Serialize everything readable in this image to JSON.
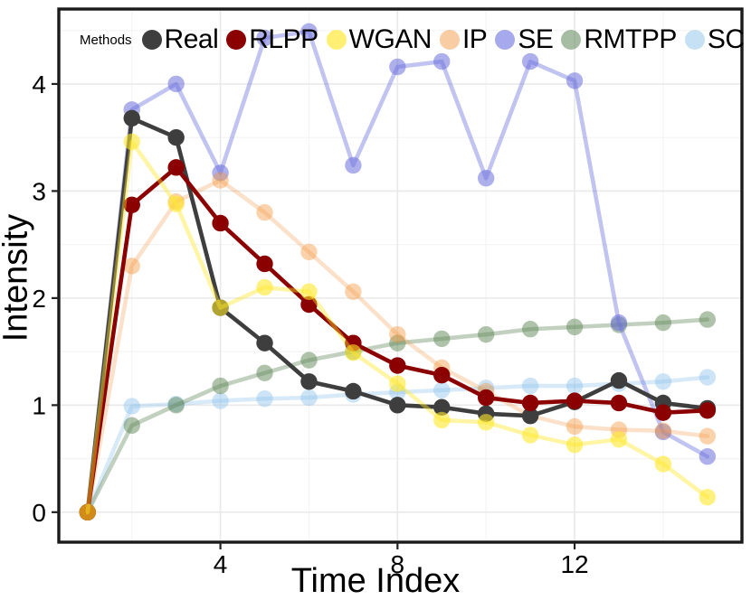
{
  "chart_data": {
    "type": "line",
    "title": "",
    "xlabel": "Time Index",
    "ylabel": "Intensity",
    "legend_title": "Methods",
    "legend_position": "top-inside",
    "grid": "major-and-minor",
    "x": [
      1,
      2,
      3,
      4,
      5,
      6,
      7,
      8,
      9,
      10,
      11,
      12,
      13,
      14,
      15
    ],
    "xlim": [
      0.35,
      15.78
    ],
    "ylim": [
      -0.28,
      4.7
    ],
    "x_major_ticks": [
      4,
      8,
      12
    ],
    "x_minor_gridlines": [
      2,
      6,
      10,
      14
    ],
    "y_major_ticks": [
      0,
      1,
      2,
      3,
      4
    ],
    "y_minor_gridlines": [
      0.5,
      1.5,
      2.5,
      3.5,
      4.5
    ],
    "series": [
      {
        "name": "Real",
        "color": "#3e3e3e",
        "line_opacity": 1,
        "marker_opacity": 1,
        "values": [
          0,
          3.68,
          3.5,
          1.91,
          1.58,
          1.22,
          1.13,
          1.0,
          0.98,
          0.92,
          0.9,
          1.03,
          1.23,
          1.02,
          0.97
        ]
      },
      {
        "name": "RLPP",
        "color": "#8b0000",
        "line_opacity": 1,
        "marker_opacity": 1,
        "values": [
          0,
          2.87,
          3.22,
          2.7,
          2.32,
          1.94,
          1.58,
          1.37,
          1.28,
          1.07,
          1.02,
          1.04,
          1.02,
          0.93,
          0.95
        ]
      },
      {
        "name": "WGAN",
        "color": "#ffe829",
        "line_opacity": 0.42,
        "marker_opacity": 0.6,
        "values": [
          0,
          3.46,
          2.88,
          1.91,
          2.1,
          2.06,
          1.49,
          1.2,
          0.86,
          0.84,
          0.72,
          0.63,
          0.68,
          0.45,
          0.14
        ]
      },
      {
        "name": "IP",
        "color": "#f2953c",
        "line_opacity": 0.28,
        "marker_opacity": 0.42,
        "values": [
          0,
          2.3,
          2.9,
          3.1,
          2.8,
          2.43,
          2.06,
          1.66,
          1.35,
          1.13,
          0.9,
          0.8,
          0.77,
          0.76,
          0.71
        ]
      },
      {
        "name": "SE",
        "color": "#6b6fdd",
        "line_opacity": 0.42,
        "marker_opacity": 0.55,
        "values": [
          0,
          3.76,
          4.0,
          3.17,
          4.43,
          4.49,
          3.24,
          4.16,
          4.21,
          3.12,
          4.21,
          4.03,
          1.77,
          0.75,
          0.52
        ]
      },
      {
        "name": "RMTPP",
        "color": "#5f8757",
        "line_opacity": 0.38,
        "marker_opacity": 0.5,
        "values": [
          0,
          0.81,
          1.0,
          1.18,
          1.3,
          1.42,
          1.5,
          1.58,
          1.62,
          1.66,
          1.71,
          1.73,
          1.75,
          1.77,
          1.8
        ]
      },
      {
        "name": "SC",
        "color": "#8fc3ea",
        "line_opacity": 0.35,
        "marker_opacity": 0.45,
        "values": [
          0,
          0.99,
          1.01,
          1.04,
          1.06,
          1.07,
          1.1,
          1.12,
          1.14,
          1.16,
          1.18,
          1.18,
          1.2,
          1.22,
          1.26
        ]
      }
    ],
    "draw_order": [
      "SC",
      "RMTPP",
      "SE",
      "IP",
      "Real",
      "RLPP",
      "WGAN"
    ],
    "colors": {
      "plot_border": "#1a1a1a",
      "major_gridline": "#e9e9e9",
      "minor_gridline": "#f4f4f4",
      "tick": "#222222",
      "text": "#000000"
    }
  }
}
